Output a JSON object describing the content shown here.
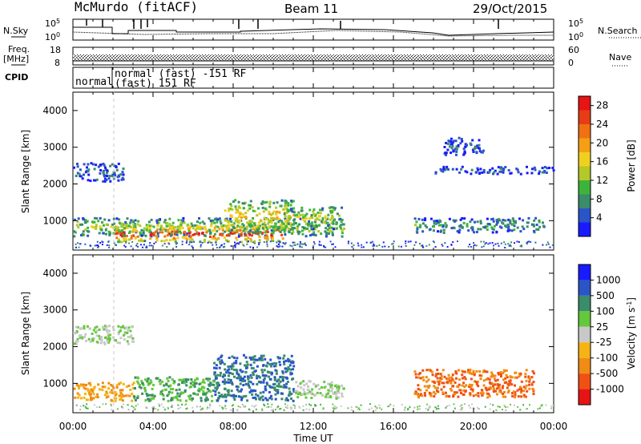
{
  "header": {
    "station": "McMurdo (fitACF)",
    "beam": "Beam 11",
    "date": "29/Oct/2015"
  },
  "left_labels": {
    "nsky": "N.Sky",
    "freq": "Freq.",
    "mhz": "[MHz]",
    "cpid": "CPID"
  },
  "right_labels": {
    "nsearch": "N.Search",
    "nave": "Nave"
  },
  "noise_axis": {
    "left_top": "10^5",
    "left_bottom": "10^0",
    "right_top": "10^5",
    "right_bottom": "10^0"
  },
  "freq_axis": {
    "left_top": "18",
    "left_bottom": "8",
    "right_top": "60",
    "right_bottom": "0"
  },
  "cpid": {
    "segment1": "normal",
    "segment2_line1": "normal (fast) -151 RF",
    "segment2_line2": "(fast) 151 RF"
  },
  "x_axis": {
    "label": "Time UT",
    "ticks": [
      "00:00",
      "04:00",
      "08:00",
      "12:00",
      "16:00",
      "20:00",
      "00:00"
    ]
  },
  "colors": {
    "power": [
      "#1a1aff",
      "#2a55c8",
      "#3a8c6a",
      "#3cb43c",
      "#b4c828",
      "#f0d01e",
      "#f5a014",
      "#f07014",
      "#e83c14",
      "#e61414"
    ],
    "velocity": [
      "#e61414",
      "#f05014",
      "#f08c14",
      "#f5b414",
      "#c8c8c8",
      "#b4b4b4",
      "#64c83c",
      "#3cb43c",
      "#3a8c6a",
      "#2a55c8",
      "#1a1aff"
    ]
  },
  "chart_data": [
    {
      "type": "heatmap",
      "name": "power",
      "xlabel": "",
      "ylabel": "Slant Range [km]",
      "xlim": [
        0,
        24
      ],
      "ylim": [
        200,
        4500
      ],
      "yticks": [
        "1000",
        "2000",
        "3000",
        "4000"
      ],
      "colorbar_label": "Power [dB]",
      "colorbar_ticks": [
        "4",
        "8",
        "12",
        "16",
        "20",
        "24",
        "28"
      ],
      "regions": [
        {
          "x": [
            0.0,
            13.5
          ],
          "y": [
            600,
            1100
          ],
          "level": 0.45
        },
        {
          "x": [
            2.0,
            10.5
          ],
          "y": [
            450,
            900
          ],
          "level": 0.9
        },
        {
          "x": [
            7.5,
            11.0
          ],
          "y": [
            700,
            1600
          ],
          "level": 0.6
        },
        {
          "x": [
            10.5,
            13.5
          ],
          "y": [
            800,
            1400
          ],
          "level": 0.5
        },
        {
          "x": [
            17.0,
            23.5
          ],
          "y": [
            700,
            1100
          ],
          "level": 0.3
        },
        {
          "x": [
            0.0,
            2.5
          ],
          "y": [
            2100,
            2600
          ],
          "level": 0.2
        },
        {
          "x": [
            18.0,
            24.0
          ],
          "y": [
            2300,
            2500
          ],
          "level": 0.15
        },
        {
          "x": [
            18.5,
            20.5
          ],
          "y": [
            2800,
            3300
          ],
          "level": 0.15
        }
      ]
    },
    {
      "type": "heatmap",
      "name": "velocity",
      "xlabel": "Time UT",
      "ylabel": "Slant Range [km]",
      "xlim": [
        0,
        24
      ],
      "ylim": [
        200,
        4500
      ],
      "yticks": [
        "1000",
        "2000",
        "3000",
        "4000"
      ],
      "colorbar_label": "Velocity [m s^-1]",
      "colorbar_ticks": [
        "1000",
        "500",
        "100",
        "25",
        "-25",
        "-100",
        "-500",
        "-1000"
      ],
      "regions": [
        {
          "x": [
            0.0,
            3.0
          ],
          "y": [
            550,
            1050
          ],
          "level": -100
        },
        {
          "x": [
            3.0,
            7.0
          ],
          "y": [
            550,
            1200
          ],
          "level": 100
        },
        {
          "x": [
            7.0,
            11.0
          ],
          "y": [
            550,
            1800
          ],
          "level": 500
        },
        {
          "x": [
            11.0,
            13.5
          ],
          "y": [
            600,
            1100
          ],
          "level": 25
        },
        {
          "x": [
            17.0,
            23.0
          ],
          "y": [
            650,
            1400
          ],
          "level": -500
        },
        {
          "x": [
            0.0,
            3.0
          ],
          "y": [
            2100,
            2600
          ],
          "level": 25
        }
      ]
    }
  ]
}
